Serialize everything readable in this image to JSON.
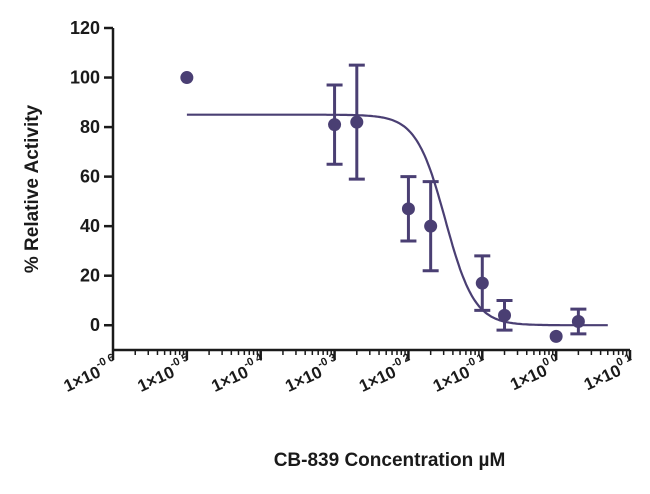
{
  "chart_data": {
    "type": "scatter",
    "title": "",
    "xlabel": "CB-839 Concentration µM",
    "ylabel": "% Relative Activity",
    "x_scale": "log10",
    "xlim": [
      1e-06,
      10
    ],
    "ylim": [
      -10,
      120
    ],
    "y_ticks": [
      0,
      20,
      40,
      60,
      80,
      100,
      120
    ],
    "y_tick_labels": [
      "0",
      "20",
      "40",
      "60",
      "80",
      "100",
      "120"
    ],
    "x_ticks": [
      1e-06,
      1e-05,
      0.0001,
      0.001,
      0.01,
      0.1,
      1,
      10
    ],
    "x_tick_labels": [
      {
        "base": "1×10",
        "exp": "-0 6"
      },
      {
        "base": "1×10",
        "exp": "-0 5"
      },
      {
        "base": "1×10",
        "exp": "-0 4"
      },
      {
        "base": "1×10",
        "exp": "-0 3"
      },
      {
        "base": "1×10",
        "exp": "-0 2"
      },
      {
        "base": "1×10",
        "exp": "-0 1"
      },
      {
        "base": "1×10",
        "exp": "0 0"
      },
      {
        "base": "1×10",
        "exp": "0 1"
      }
    ],
    "grid": false,
    "legend": "none",
    "marker_color": "#4a3f73",
    "series": [
      {
        "x": [
          1e-05,
          0.001,
          0.002,
          0.01,
          0.02,
          0.1,
          0.2,
          1,
          2
        ],
        "y": [
          100,
          81,
          82,
          47,
          40,
          17,
          4,
          -4.5,
          1.5
        ],
        "error": [
          0,
          16,
          23,
          13,
          18,
          11,
          6,
          0,
          5
        ]
      }
    ],
    "fit": {
      "model": "sigmoidal dose-response",
      "top": 85,
      "bottom": 0,
      "log_ic50": -1.5,
      "hill": -2.2
    }
  }
}
